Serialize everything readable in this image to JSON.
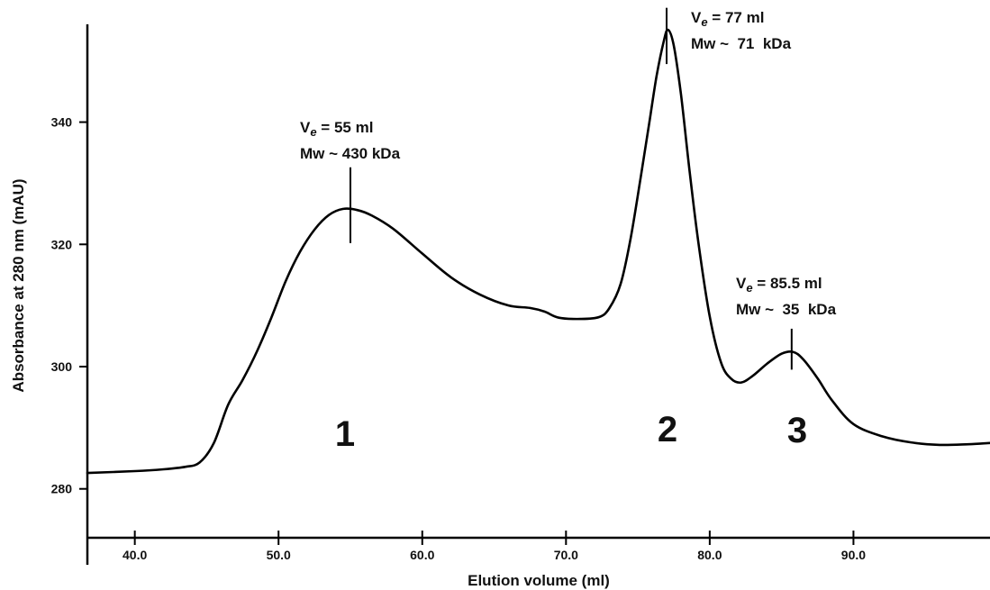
{
  "chart_data": {
    "type": "line",
    "title": "",
    "xlabel": "Elution volume (ml)",
    "ylabel": "Absorbance at 280 nm (mAU)",
    "xlim": [
      36.7,
      99.5
    ],
    "ylim": [
      272,
      356
    ],
    "x_ticks": [
      40,
      50,
      60,
      70,
      80,
      90
    ],
    "x_tick_labels": [
      "40.0",
      "50.0",
      "60.0",
      "70.0",
      "80.0",
      "90.0"
    ],
    "y_ticks": [
      280,
      300,
      320,
      340
    ],
    "y_tick_labels": [
      "280",
      "300",
      "320",
      "340"
    ],
    "grid": false,
    "legend": "none",
    "line_color": "#000000",
    "series": [
      {
        "x": [
          36.7,
          40,
          42,
          43.5,
          44.5,
          45.5,
          46.5,
          47.5,
          48.5,
          49.5,
          50.5,
          51.5,
          52.5,
          53.5,
          54.5,
          55.5,
          56.5,
          58,
          60,
          62,
          64,
          66,
          67.5,
          68.5,
          69.5,
          71,
          72.3,
          73,
          73.8,
          74.5,
          75.2,
          75.8,
          76.3,
          76.8,
          77.1,
          77.5,
          78,
          78.6,
          79.2,
          80,
          80.8,
          81.5,
          82.2,
          83,
          84,
          85,
          85.8,
          86.5,
          87.5,
          88.5,
          90,
          92,
          94,
          96,
          98,
          99.5
        ],
        "y": [
          282.6,
          282.9,
          283.2,
          283.6,
          284.3,
          287.5,
          293.8,
          297.8,
          302.5,
          308,
          314,
          318.8,
          322.4,
          324.8,
          325.8,
          325.6,
          324.7,
          322.5,
          318.5,
          314.6,
          311.8,
          310,
          309.6,
          309,
          308,
          307.8,
          308.1,
          309.5,
          313.5,
          321,
          331,
          340,
          347.5,
          353.2,
          355.1,
          352.5,
          344.5,
          332,
          320.5,
          308.2,
          300.6,
          298,
          297.4,
          298.5,
          300.5,
          302.1,
          302.4,
          301.2,
          298.1,
          294.5,
          290.6,
          288.6,
          287.6,
          287.2,
          287.3,
          287.5
        ]
      }
    ],
    "peaks": [
      {
        "x": 55,
        "y": 325.8,
        "marker_bottom": 320.2,
        "marker_top": 332.6,
        "label": "1",
        "ve": "55 ml",
        "mw": "Mw ~ 430 kDa"
      },
      {
        "x": 77,
        "y": 355.1,
        "marker_bottom": 349.5,
        "marker_top": 358.7,
        "label": "2",
        "ve": "77 ml",
        "mw": "Mw ~  71  kDa"
      },
      {
        "x": 85.7,
        "y": 302.4,
        "marker_bottom": 299.5,
        "marker_top": 306.2,
        "label": "3",
        "ve": "85.5 ml",
        "mw": "Mw ~  35  kDa"
      }
    ]
  }
}
